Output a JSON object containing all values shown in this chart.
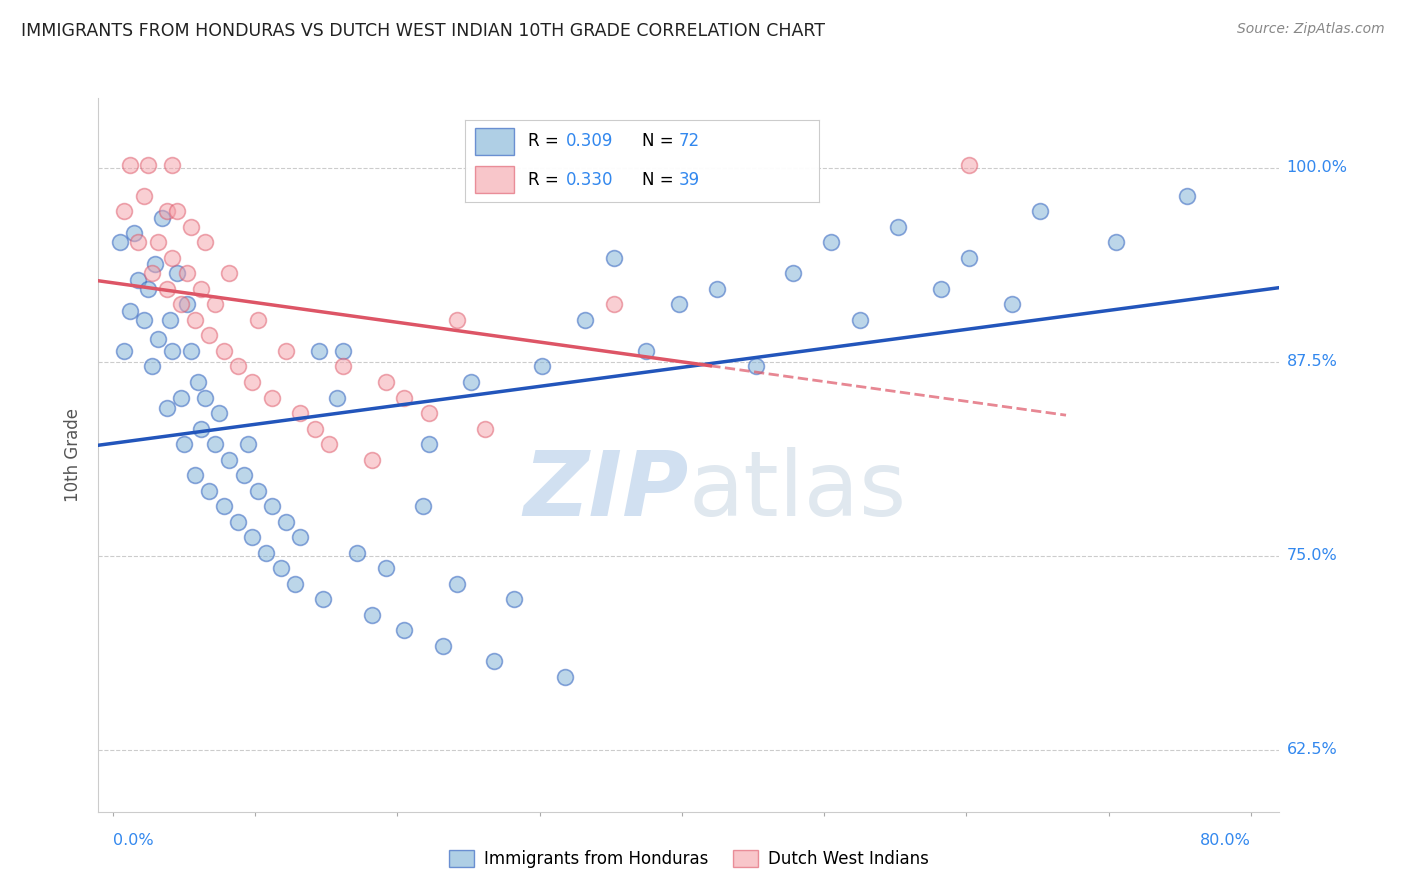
{
  "title": "IMMIGRANTS FROM HONDURAS VS DUTCH WEST INDIAN 10TH GRADE CORRELATION CHART",
  "source": "Source: ZipAtlas.com",
  "ylabel": "10th Grade",
  "y_ticks": [
    0.625,
    0.75,
    0.875,
    1.0
  ],
  "y_tick_labels": [
    "62.5%",
    "75.0%",
    "87.5%",
    "100.0%"
  ],
  "x_lim": [
    -0.01,
    0.82
  ],
  "y_lim": [
    0.585,
    1.045
  ],
  "legend_r1": "0.309",
  "legend_n1": "72",
  "legend_r2": "0.330",
  "legend_n2": "39",
  "legend_label1": "Immigrants from Honduras",
  "legend_label2": "Dutch West Indians",
  "blue_color": "#7BAFD4",
  "pink_color": "#F4A0A8",
  "blue_line_color": "#2255BB",
  "pink_line_color": "#DD5566",
  "accent_color": "#3388EE",
  "blue_x": [
    0.018,
    0.008,
    0.012,
    0.005,
    0.022,
    0.015,
    0.028,
    0.032,
    0.025,
    0.03,
    0.035,
    0.038,
    0.042,
    0.04,
    0.045,
    0.05,
    0.048,
    0.055,
    0.052,
    0.058,
    0.062,
    0.06,
    0.068,
    0.072,
    0.065,
    0.078,
    0.082,
    0.075,
    0.088,
    0.092,
    0.098,
    0.102,
    0.095,
    0.108,
    0.112,
    0.118,
    0.122,
    0.128,
    0.132,
    0.145,
    0.148,
    0.158,
    0.162,
    0.172,
    0.182,
    0.192,
    0.205,
    0.218,
    0.222,
    0.232,
    0.242,
    0.252,
    0.268,
    0.282,
    0.302,
    0.318,
    0.332,
    0.352,
    0.375,
    0.398,
    0.425,
    0.452,
    0.478,
    0.505,
    0.525,
    0.552,
    0.582,
    0.602,
    0.632,
    0.652,
    0.705,
    0.755
  ],
  "blue_y": [
    0.928,
    0.882,
    0.908,
    0.952,
    0.902,
    0.958,
    0.872,
    0.89,
    0.922,
    0.938,
    0.968,
    0.845,
    0.882,
    0.902,
    0.932,
    0.822,
    0.852,
    0.882,
    0.912,
    0.802,
    0.832,
    0.862,
    0.792,
    0.822,
    0.852,
    0.782,
    0.812,
    0.842,
    0.772,
    0.802,
    0.762,
    0.792,
    0.822,
    0.752,
    0.782,
    0.742,
    0.772,
    0.732,
    0.762,
    0.882,
    0.722,
    0.852,
    0.882,
    0.752,
    0.712,
    0.742,
    0.702,
    0.782,
    0.822,
    0.692,
    0.732,
    0.862,
    0.682,
    0.722,
    0.872,
    0.672,
    0.902,
    0.942,
    0.882,
    0.912,
    0.922,
    0.872,
    0.932,
    0.952,
    0.902,
    0.962,
    0.922,
    0.942,
    0.912,
    0.972,
    0.952,
    0.982
  ],
  "pink_x": [
    0.008,
    0.012,
    0.018,
    0.022,
    0.025,
    0.028,
    0.032,
    0.038,
    0.042,
    0.038,
    0.042,
    0.045,
    0.048,
    0.052,
    0.055,
    0.058,
    0.062,
    0.065,
    0.068,
    0.072,
    0.078,
    0.082,
    0.088,
    0.098,
    0.102,
    0.112,
    0.122,
    0.132,
    0.142,
    0.152,
    0.162,
    0.182,
    0.192,
    0.205,
    0.222,
    0.242,
    0.262,
    0.352,
    0.602
  ],
  "pink_y": [
    0.972,
    1.002,
    0.952,
    0.982,
    1.002,
    0.932,
    0.952,
    0.972,
    1.002,
    0.922,
    0.942,
    0.972,
    0.912,
    0.932,
    0.962,
    0.902,
    0.922,
    0.952,
    0.892,
    0.912,
    0.882,
    0.932,
    0.872,
    0.862,
    0.902,
    0.852,
    0.882,
    0.842,
    0.832,
    0.822,
    0.872,
    0.812,
    0.862,
    0.852,
    0.842,
    0.902,
    0.832,
    0.912,
    1.002
  ]
}
